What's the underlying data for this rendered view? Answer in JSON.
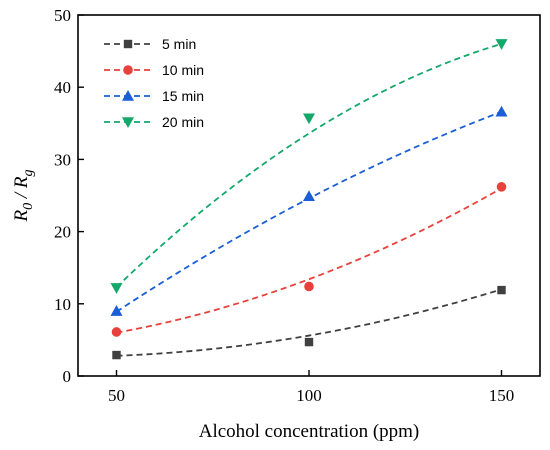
{
  "chart_data": {
    "type": "scatter",
    "title": "",
    "xlabel": "Alcohol concentration (ppm)",
    "ylabel": "R0 / Rg",
    "ylabel_parts": {
      "r": "R",
      "sub0": "0",
      "sep": " / ",
      "r2": "R",
      "subg": "g"
    },
    "x": [
      50,
      100,
      150
    ],
    "xlim": [
      40,
      160
    ],
    "ylim": [
      0,
      50
    ],
    "x_ticks": [
      50,
      100,
      150
    ],
    "y_ticks": [
      0,
      10,
      20,
      30,
      40,
      50
    ],
    "grid": false,
    "legend_position": "top-left",
    "fit_lines": "dashed",
    "series": [
      {
        "name": "5 min",
        "marker": "square",
        "color": "#404040",
        "values": [
          2.9,
          4.7,
          11.9
        ],
        "fit": [
          2.8,
          5.6,
          12.0
        ]
      },
      {
        "name": "10 min",
        "marker": "circle",
        "color": "#e8413b",
        "values": [
          6.1,
          12.4,
          26.2
        ],
        "fit": [
          6.0,
          13.4,
          26.0
        ]
      },
      {
        "name": "15 min",
        "marker": "triangle-up",
        "color": "#1a5fd6",
        "values": [
          9.0,
          24.9,
          36.6
        ],
        "fit": [
          8.9,
          24.6,
          36.6
        ]
      },
      {
        "name": "20 min",
        "marker": "triangle-down",
        "color": "#14a86a",
        "values": [
          12.2,
          35.7,
          46.0
        ],
        "fit": [
          12.3,
          33.6,
          46.0
        ]
      }
    ]
  }
}
